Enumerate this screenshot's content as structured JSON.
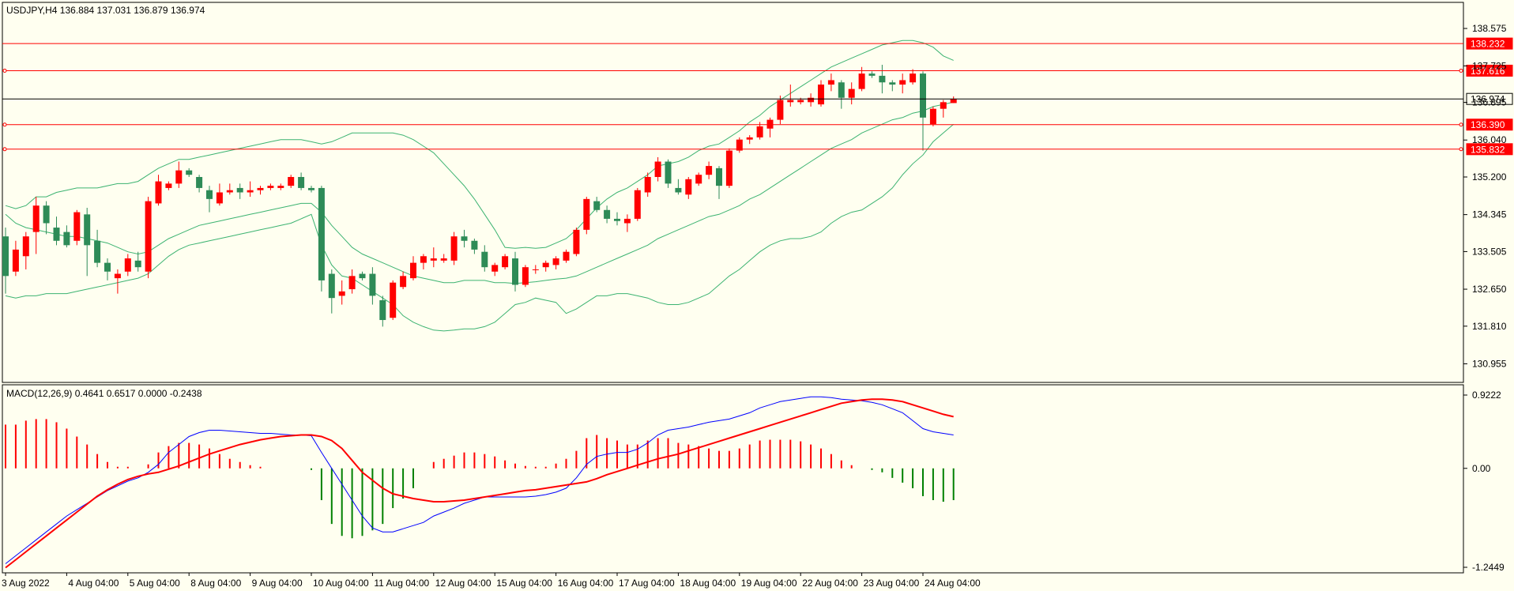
{
  "chart_data": [
    {
      "type": "candlestick",
      "title": "USDJPY,H4  136.884 137.031 136.879 136.974",
      "symbol": "USDJPY",
      "timeframe": "H4",
      "ohlc_label": {
        "open": "136.884",
        "high": "137.031",
        "low": "136.879",
        "close": "136.974"
      },
      "ylim": [
        130.55,
        139.15
      ],
      "y_ticks": [
        "138.575",
        "137.725",
        "136.895",
        "136.040",
        "135.200",
        "134.345",
        "133.505",
        "132.650",
        "131.810",
        "130.955"
      ],
      "x_ticks": [
        "3 Aug 2022",
        "4 Aug 04:00",
        "5 Aug 04:00",
        "8 Aug 04:00",
        "9 Aug 04:00",
        "10 Aug 04:00",
        "11 Aug 04:00",
        "12 Aug 04:00",
        "15 Aug 04:00",
        "16 Aug 04:00",
        "17 Aug 04:00",
        "18 Aug 04:00",
        "19 Aug 04:00",
        "22 Aug 04:00",
        "23 Aug 04:00",
        "24 Aug 04:00"
      ],
      "horizontal_levels": [
        {
          "value": 138.232,
          "label": "138.232",
          "color": "#ff0000"
        },
        {
          "value": 137.616,
          "label": "137.616",
          "color": "#ff0000"
        },
        {
          "value": 136.974,
          "label": "136.974",
          "color": "#000000"
        },
        {
          "value": 136.39,
          "label": "136.390",
          "color": "#ff0000"
        },
        {
          "value": 135.832,
          "label": "135.832",
          "color": "#ff0000"
        }
      ],
      "colors": {
        "up": "#ff0000",
        "down": "#2e8b57",
        "bollinger": "#3cb371",
        "level": "#ff0000",
        "price_line": "#000000",
        "background": "#fffff0"
      },
      "candles": [
        [
          133.85,
          134.05,
          132.55,
          132.95
        ],
        [
          133.05,
          133.75,
          132.95,
          133.55
        ],
        [
          133.4,
          133.95,
          133.1,
          133.85
        ],
        [
          133.95,
          134.75,
          133.45,
          134.55
        ],
        [
          134.55,
          134.65,
          133.9,
          134.15
        ],
        [
          134.05,
          134.3,
          133.65,
          133.75
        ],
        [
          133.95,
          134.1,
          133.6,
          133.65
        ],
        [
          133.75,
          134.45,
          133.65,
          134.4
        ],
        [
          134.35,
          134.5,
          132.95,
          133.65
        ],
        [
          133.75,
          134.0,
          133.15,
          133.25
        ],
        [
          133.25,
          133.35,
          132.85,
          133.05
        ],
        [
          132.9,
          133.1,
          132.55,
          133.0
        ],
        [
          133.05,
          133.45,
          132.95,
          133.35
        ],
        [
          133.3,
          133.5,
          133.05,
          133.15
        ],
        [
          133.05,
          134.75,
          132.9,
          134.65
        ],
        [
          134.6,
          135.25,
          134.55,
          135.1
        ],
        [
          134.95,
          135.1,
          134.9,
          135.05
        ],
        [
          135.05,
          135.55,
          134.95,
          135.35
        ],
        [
          135.35,
          135.4,
          135.2,
          135.25
        ],
        [
          135.2,
          135.25,
          134.85,
          134.95
        ],
        [
          134.9,
          135.0,
          134.4,
          134.7
        ],
        [
          134.6,
          135.05,
          134.55,
          134.85
        ],
        [
          134.85,
          135.05,
          134.8,
          134.9
        ],
        [
          134.95,
          135.05,
          134.7,
          134.85
        ],
        [
          134.85,
          135.1,
          134.75,
          134.9
        ],
        [
          134.9,
          135.0,
          134.8,
          134.95
        ],
        [
          134.95,
          135.05,
          134.9,
          135.0
        ],
        [
          134.95,
          135.05,
          134.9,
          135.0
        ],
        [
          135.0,
          135.25,
          134.95,
          135.2
        ],
        [
          135.2,
          135.3,
          134.9,
          134.95
        ],
        [
          134.95,
          135.0,
          134.85,
          134.9
        ],
        [
          134.95,
          135.0,
          132.6,
          132.85
        ],
        [
          133.0,
          133.1,
          132.1,
          132.45
        ],
        [
          132.5,
          132.85,
          132.3,
          132.6
        ],
        [
          132.65,
          133.1,
          132.55,
          132.95
        ],
        [
          133.0,
          133.05,
          132.85,
          132.9
        ],
        [
          133.0,
          133.15,
          132.3,
          132.5
        ],
        [
          132.4,
          132.5,
          131.8,
          131.95
        ],
        [
          132.0,
          132.85,
          131.95,
          132.8
        ],
        [
          132.7,
          133.05,
          132.65,
          132.95
        ],
        [
          132.9,
          133.4,
          132.85,
          133.25
        ],
        [
          133.25,
          133.45,
          133.1,
          133.4
        ],
        [
          133.3,
          133.6,
          133.15,
          133.35
        ],
        [
          133.3,
          133.45,
          133.25,
          133.35
        ],
        [
          133.3,
          133.95,
          133.2,
          133.85
        ],
        [
          133.85,
          134.0,
          133.6,
          133.75
        ],
        [
          133.75,
          133.8,
          133.45,
          133.55
        ],
        [
          133.5,
          133.65,
          133.05,
          133.15
        ],
        [
          133.05,
          133.25,
          132.95,
          133.2
        ],
        [
          133.15,
          133.45,
          133.1,
          133.4
        ],
        [
          133.35,
          133.5,
          132.6,
          132.75
        ],
        [
          132.75,
          133.2,
          132.7,
          133.15
        ],
        [
          133.1,
          133.2,
          133.0,
          133.1
        ],
        [
          133.15,
          133.3,
          133.05,
          133.25
        ],
        [
          133.2,
          133.4,
          133.1,
          133.35
        ],
        [
          133.3,
          133.55,
          133.25,
          133.5
        ],
        [
          133.45,
          134.05,
          133.4,
          134.0
        ],
        [
          134.0,
          134.75,
          133.9,
          134.7
        ],
        [
          134.65,
          134.75,
          134.4,
          134.45
        ],
        [
          134.45,
          134.55,
          134.15,
          134.25
        ],
        [
          134.25,
          134.4,
          134.1,
          134.2
        ],
        [
          134.15,
          134.35,
          133.95,
          134.25
        ],
        [
          134.25,
          134.95,
          134.2,
          134.9
        ],
        [
          134.85,
          135.3,
          134.75,
          135.2
        ],
        [
          135.2,
          135.65,
          135.1,
          135.55
        ],
        [
          135.55,
          135.6,
          134.95,
          135.05
        ],
        [
          134.95,
          135.15,
          134.8,
          134.85
        ],
        [
          134.8,
          135.2,
          134.7,
          135.15
        ],
        [
          135.05,
          135.3,
          135.0,
          135.25
        ],
        [
          135.25,
          135.55,
          135.15,
          135.45
        ],
        [
          135.4,
          135.45,
          134.7,
          135.0
        ],
        [
          135.0,
          135.85,
          134.95,
          135.8
        ],
        [
          135.8,
          136.1,
          135.75,
          136.05
        ],
        [
          136.05,
          136.15,
          135.95,
          136.1
        ],
        [
          136.1,
          136.45,
          136.05,
          136.35
        ],
        [
          136.3,
          136.55,
          136.1,
          136.5
        ],
        [
          136.5,
          137.05,
          136.4,
          136.95
        ],
        [
          136.9,
          137.3,
          136.8,
          136.95
        ],
        [
          136.9,
          137.0,
          136.85,
          136.95
        ],
        [
          136.9,
          137.1,
          136.8,
          137.0
        ],
        [
          136.85,
          137.4,
          136.8,
          137.3
        ],
        [
          137.3,
          137.55,
          137.15,
          137.4
        ],
        [
          137.35,
          137.4,
          136.75,
          137.0
        ],
        [
          137.0,
          137.35,
          136.85,
          137.2
        ],
        [
          137.2,
          137.7,
          137.15,
          137.55
        ],
        [
          137.55,
          137.6,
          137.45,
          137.5
        ],
        [
          137.5,
          137.75,
          137.1,
          137.35
        ],
        [
          137.35,
          137.4,
          137.15,
          137.3
        ],
        [
          137.3,
          137.55,
          137.1,
          137.4
        ],
        [
          137.35,
          137.65,
          137.3,
          137.55
        ],
        [
          137.55,
          137.6,
          135.8,
          136.55
        ],
        [
          136.4,
          136.8,
          136.35,
          136.75
        ],
        [
          136.75,
          136.95,
          136.55,
          136.9
        ],
        [
          136.88,
          137.03,
          136.88,
          136.97
        ]
      ],
      "bollinger_bands": {
        "upper": [
          134.55,
          134.48,
          134.55,
          134.75,
          134.75,
          134.85,
          134.9,
          134.95,
          134.95,
          134.95,
          135,
          135.05,
          135.05,
          135.1,
          135.25,
          135.4,
          135.5,
          135.6,
          135.6,
          135.65,
          135.7,
          135.75,
          135.8,
          135.85,
          135.9,
          135.95,
          136,
          136.05,
          136.05,
          136.05,
          136,
          135.95,
          136,
          136.1,
          136.2,
          136.2,
          136.2,
          136.2,
          136.2,
          136.15,
          136.05,
          135.9,
          135.75,
          135.5,
          135.25,
          135,
          134.7,
          134.35,
          134,
          133.6,
          133.58,
          133.6,
          133.58,
          133.6,
          133.7,
          133.8,
          134.0,
          134.25,
          134.5,
          134.7,
          134.85,
          134.95,
          135.1,
          135.25,
          135.45,
          135.5,
          135.55,
          135.65,
          135.8,
          135.9,
          135.95,
          136.1,
          136.25,
          136.45,
          136.6,
          136.8,
          136.95,
          137.1,
          137.25,
          137.4,
          137.55,
          137.7,
          137.8,
          137.9,
          138.0,
          138.1,
          138.2,
          138.25,
          138.3,
          138.3,
          138.25,
          138.15,
          137.95,
          137.85
        ],
        "middle": [
          134.35,
          134.15,
          134.05,
          134.0,
          133.95,
          133.9,
          133.85,
          133.85,
          133.8,
          133.75,
          133.7,
          133.6,
          133.5,
          133.45,
          133.5,
          133.65,
          133.8,
          133.9,
          134.0,
          134.1,
          134.15,
          134.2,
          134.25,
          134.3,
          134.35,
          134.4,
          134.45,
          134.5,
          134.55,
          134.6,
          134.6,
          134.4,
          134.1,
          133.85,
          133.6,
          133.45,
          133.35,
          133.25,
          133.15,
          133.05,
          132.95,
          132.9,
          132.85,
          132.8,
          132.8,
          132.85,
          132.85,
          132.85,
          132.8,
          132.8,
          132.78,
          132.8,
          132.82,
          132.85,
          132.88,
          132.9,
          132.95,
          133.05,
          133.15,
          133.25,
          133.35,
          133.45,
          133.55,
          133.65,
          133.8,
          133.9,
          134.0,
          134.1,
          134.2,
          134.3,
          134.35,
          134.45,
          134.55,
          134.7,
          134.8,
          134.95,
          135.1,
          135.25,
          135.4,
          135.55,
          135.7,
          135.85,
          135.95,
          136.05,
          136.2,
          136.3,
          136.4,
          136.5,
          136.55,
          136.65,
          136.7,
          136.8,
          136.85,
          136.9
        ],
        "lower": [
          132.5,
          132.45,
          132.5,
          132.5,
          132.55,
          132.55,
          132.55,
          132.6,
          132.65,
          132.7,
          132.75,
          132.8,
          132.85,
          132.9,
          133.0,
          133.2,
          133.4,
          133.55,
          133.65,
          133.7,
          133.75,
          133.8,
          133.85,
          133.9,
          133.95,
          134.0,
          134.05,
          134.1,
          134.15,
          134.25,
          134.35,
          133.65,
          133.2,
          132.95,
          132.9,
          132.75,
          132.6,
          132.45,
          132.3,
          132.05,
          131.9,
          131.8,
          131.72,
          131.7,
          131.72,
          131.75,
          131.75,
          131.8,
          131.9,
          132.1,
          132.3,
          132.35,
          132.45,
          132.4,
          132.35,
          132.1,
          132.2,
          132.35,
          132.5,
          132.5,
          132.55,
          132.55,
          132.5,
          132.45,
          132.35,
          132.3,
          132.3,
          132.35,
          132.45,
          132.55,
          132.75,
          132.95,
          133.1,
          133.3,
          133.5,
          133.65,
          133.75,
          133.8,
          133.8,
          133.85,
          133.95,
          134.15,
          134.3,
          134.4,
          134.45,
          134.6,
          134.75,
          134.95,
          135.25,
          135.5,
          135.7,
          136.0,
          136.2,
          136.4
        ]
      }
    },
    {
      "type": "macd",
      "title": "MACD(12,26,9) 0.4641 0.6517 0.0000 -0.2438",
      "ylim": [
        -1.2449,
        0.9222
      ],
      "y_ticks": [
        "0.9222",
        "0.00",
        "-1.2449"
      ],
      "colors": {
        "histogram_up": "#ff0000",
        "histogram_down": "#008000",
        "macd_line": "#0000ff",
        "signal_line": "#ff0000"
      },
      "histogram": [
        0.55,
        0.55,
        0.6,
        0.62,
        0.62,
        0.58,
        0.5,
        0.4,
        0.3,
        0.18,
        0.08,
        0.02,
        0.02,
        0,
        0.05,
        0.2,
        0.28,
        0.32,
        0.32,
        0.3,
        0.25,
        0.18,
        0.12,
        0.08,
        0.04,
        0.02,
        0,
        0,
        0,
        0,
        -0.02,
        -0.4,
        -0.7,
        -0.85,
        -0.88,
        -0.85,
        -0.78,
        -0.7,
        -0.5,
        -0.38,
        -0.25,
        0,
        0.08,
        0.12,
        0.16,
        0.2,
        0.2,
        0.18,
        0.15,
        0.1,
        0.06,
        0.03,
        0.02,
        0.02,
        0.06,
        0.12,
        0.22,
        0.38,
        0.42,
        0.38,
        0.35,
        0.3,
        0.3,
        0.35,
        0.38,
        0.38,
        0.32,
        0.3,
        0.28,
        0.25,
        0.22,
        0.22,
        0.25,
        0.3,
        0.35,
        0.36,
        0.36,
        0.36,
        0.34,
        0.3,
        0.25,
        0.18,
        0.1,
        0.04,
        0,
        -0.02,
        -0.05,
        -0.12,
        -0.18,
        -0.25,
        -0.35,
        -0.4,
        -0.42,
        -0.4
      ],
      "macd": [
        -1.2,
        -1.1,
        -1.0,
        -0.9,
        -0.8,
        -0.7,
        -0.6,
        -0.52,
        -0.44,
        -0.36,
        -0.28,
        -0.22,
        -0.16,
        -0.12,
        -0.05,
        0.05,
        0.2,
        0.3,
        0.4,
        0.45,
        0.48,
        0.48,
        0.47,
        0.46,
        0.45,
        0.44,
        0.44,
        0.43,
        0.42,
        0.42,
        0.41,
        0.2,
        0.0,
        -0.2,
        -0.4,
        -0.6,
        -0.75,
        -0.8,
        -0.8,
        -0.76,
        -0.72,
        -0.68,
        -0.6,
        -0.55,
        -0.5,
        -0.44,
        -0.4,
        -0.36,
        -0.36,
        -0.36,
        -0.36,
        -0.36,
        -0.35,
        -0.33,
        -0.3,
        -0.25,
        -0.12,
        0.05,
        0.15,
        0.18,
        0.2,
        0.2,
        0.24,
        0.32,
        0.42,
        0.48,
        0.5,
        0.52,
        0.55,
        0.58,
        0.6,
        0.62,
        0.66,
        0.7,
        0.76,
        0.8,
        0.84,
        0.86,
        0.88,
        0.9,
        0.9,
        0.89,
        0.87,
        0.86,
        0.85,
        0.83,
        0.8,
        0.75,
        0.7,
        0.6,
        0.5,
        0.46,
        0.44,
        0.42
      ],
      "signal": [
        -1.25,
        -1.15,
        -1.05,
        -0.95,
        -0.85,
        -0.75,
        -0.65,
        -0.55,
        -0.45,
        -0.35,
        -0.27,
        -0.2,
        -0.14,
        -0.1,
        -0.07,
        -0.05,
        -0.01,
        0.03,
        0.08,
        0.13,
        0.18,
        0.22,
        0.26,
        0.3,
        0.33,
        0.36,
        0.38,
        0.4,
        0.41,
        0.42,
        0.42,
        0.4,
        0.35,
        0.25,
        0.1,
        -0.05,
        -0.15,
        -0.25,
        -0.32,
        -0.35,
        -0.38,
        -0.4,
        -0.42,
        -0.42,
        -0.41,
        -0.4,
        -0.38,
        -0.36,
        -0.34,
        -0.32,
        -0.3,
        -0.28,
        -0.27,
        -0.25,
        -0.23,
        -0.21,
        -0.19,
        -0.17,
        -0.13,
        -0.08,
        -0.04,
        0.0,
        0.04,
        0.08,
        0.12,
        0.15,
        0.18,
        0.22,
        0.26,
        0.3,
        0.34,
        0.38,
        0.42,
        0.46,
        0.5,
        0.54,
        0.58,
        0.62,
        0.66,
        0.7,
        0.74,
        0.78,
        0.82,
        0.84,
        0.86,
        0.87,
        0.87,
        0.86,
        0.84,
        0.8,
        0.76,
        0.72,
        0.68,
        0.65
      ]
    }
  ]
}
